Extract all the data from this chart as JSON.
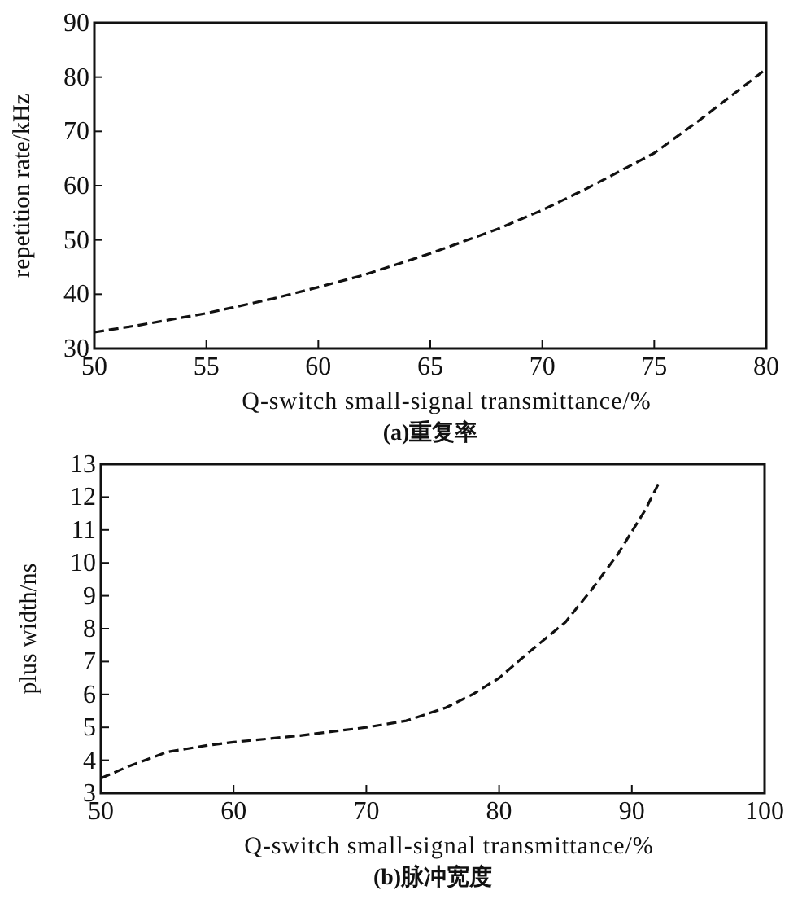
{
  "chart_data": [
    {
      "type": "line",
      "xlabel": "Q-switch small-signal transmittance/%",
      "ylabel": "repetition rate/kHz",
      "annotations": [
        "(a)重复率"
      ],
      "xlim": [
        50,
        80
      ],
      "ylim": [
        30,
        90
      ],
      "xticks": [
        50,
        55,
        60,
        65,
        70,
        75,
        80
      ],
      "yticks": [
        30,
        40,
        50,
        60,
        70,
        80,
        90
      ],
      "grid": false,
      "line_style": "dashed",
      "marker": "none",
      "series": [
        {
          "color": "#111111",
          "x": [
            50,
            52,
            55,
            58,
            60,
            62,
            65,
            68,
            70,
            72,
            75,
            77,
            80
          ],
          "values": [
            33,
            34.3,
            36.5,
            39.2,
            41.3,
            43.5,
            47.5,
            52,
            55.5,
            59.5,
            66,
            72,
            81.5
          ]
        }
      ]
    },
    {
      "type": "line",
      "xlabel": "Q-switch small-signal transmittance/%",
      "ylabel": "plus width/ns",
      "annotations": [
        "(b)脉冲宽度"
      ],
      "xlim": [
        50,
        100
      ],
      "ylim": [
        3,
        13
      ],
      "xticks": [
        50,
        60,
        70,
        80,
        90,
        100
      ],
      "yticks": [
        3,
        4,
        5,
        6,
        7,
        8,
        9,
        10,
        11,
        12,
        13
      ],
      "grid": false,
      "line_style": "dashed",
      "marker": "none",
      "series": [
        {
          "color": "#111111",
          "x": [
            50,
            52,
            55,
            58,
            60,
            65,
            70,
            73,
            76,
            78,
            80,
            82,
            85,
            87,
            89,
            91,
            92
          ],
          "values": [
            3.45,
            3.8,
            4.25,
            4.45,
            4.55,
            4.75,
            5.0,
            5.2,
            5.6,
            6.0,
            6.5,
            7.2,
            8.2,
            9.2,
            10.3,
            11.6,
            12.4
          ]
        }
      ]
    }
  ]
}
